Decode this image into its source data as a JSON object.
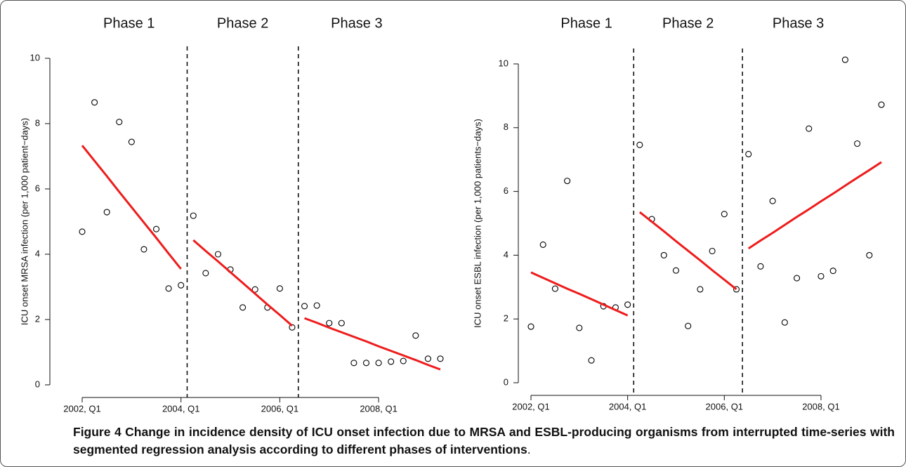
{
  "chart_data": [
    {
      "type": "scatter",
      "phases": [
        "Phase 1",
        "Phase 2",
        "Phase 3"
      ],
      "y_label": "ICU onset MRSA infection (per 1,000 patient−days)",
      "categories": [
        "2002, Q1",
        null,
        null,
        null,
        null,
        null,
        null,
        null,
        "2004, Q1",
        null,
        null,
        null,
        null,
        null,
        null,
        null,
        "2006, Q1",
        null,
        null,
        null,
        null,
        null,
        null,
        null,
        "2008, Q1",
        null,
        null,
        null,
        null,
        null
      ],
      "ylim": [
        0,
        10
      ],
      "yticks": [
        0,
        2,
        4,
        6,
        8,
        10
      ],
      "series": [
        {
          "color": "#000000",
          "marker": "open-circle",
          "values": [
            4.69,
            8.65,
            5.29,
            8.05,
            7.44,
            4.15,
            4.77,
            2.95,
            3.05,
            5.18,
            3.42,
            4.0,
            3.53,
            2.37,
            2.92,
            2.37,
            2.95,
            1.76,
            2.41,
            2.43,
            1.89,
            1.89,
            0.67,
            0.67,
            0.67,
            0.71,
            0.73,
            1.51,
            0.8,
            0.8
          ]
        },
        {
          "color": "#ee1c1c",
          "line": true,
          "values": [
            7.33,
            6.86,
            6.39,
            5.91,
            5.44,
            4.97,
            4.5,
            4.02,
            3.55,
            null,
            null,
            null,
            null,
            null,
            null,
            null,
            null,
            null,
            null,
            null,
            null,
            null,
            null,
            null,
            null,
            null,
            null,
            null,
            null,
            null
          ]
        },
        {
          "color": "#ee1c1c",
          "line": true,
          "values": [
            null,
            null,
            null,
            null,
            null,
            null,
            null,
            null,
            null,
            4.43,
            4.1,
            3.78,
            3.45,
            3.12,
            2.79,
            2.46,
            2.14,
            1.81,
            null,
            null,
            null,
            null,
            null,
            null,
            null,
            null,
            null,
            null,
            null,
            null
          ]
        },
        {
          "color": "#ee1c1c",
          "line": true,
          "values": [
            null,
            null,
            null,
            null,
            null,
            null,
            null,
            null,
            null,
            null,
            null,
            null,
            null,
            null,
            null,
            null,
            null,
            null,
            2.04,
            1.9,
            1.75,
            1.61,
            1.47,
            1.33,
            1.18,
            1.04,
            0.9,
            0.76,
            0.61,
            0.47
          ]
        }
      ]
    },
    {
      "type": "scatter",
      "phases": [
        "Phase 1",
        "Phase 2",
        "Phase 3"
      ],
      "y_label": "ICU onset ESBL infection (per 1,000 patients−days)",
      "categories": [
        "2002, Q1",
        null,
        null,
        null,
        null,
        null,
        null,
        null,
        "2004, Q1",
        null,
        null,
        null,
        null,
        null,
        null,
        null,
        "2006, Q1",
        null,
        null,
        null,
        null,
        null,
        null,
        null,
        "2008, Q1",
        null,
        null,
        null,
        null,
        null
      ],
      "ylim": [
        0,
        10
      ],
      "yticks": [
        0,
        2,
        4,
        6,
        8,
        10
      ],
      "series": [
        {
          "color": "#000000",
          "marker": "open-circle",
          "values": [
            1.76,
            4.33,
            2.95,
            6.33,
            1.72,
            0.7,
            2.4,
            2.36,
            2.45,
            7.46,
            5.13,
            4.0,
            3.52,
            1.78,
            2.93,
            4.13,
            5.29,
            2.93,
            7.17,
            3.65,
            5.7,
            1.89,
            3.28,
            7.97,
            3.34,
            3.51,
            10.13,
            7.5,
            4.0,
            8.72
          ]
        },
        {
          "color": "#ee1c1c",
          "line": true,
          "values": [
            3.46,
            3.29,
            3.12,
            2.95,
            2.79,
            2.62,
            2.45,
            2.28,
            2.11,
            null,
            null,
            null,
            null,
            null,
            null,
            null,
            null,
            null,
            null,
            null,
            null,
            null,
            null,
            null,
            null,
            null,
            null,
            null,
            null,
            null
          ]
        },
        {
          "color": "#ee1c1c",
          "line": true,
          "values": [
            null,
            null,
            null,
            null,
            null,
            null,
            null,
            null,
            null,
            5.35,
            5.05,
            4.75,
            4.44,
            4.14,
            3.84,
            3.53,
            3.23,
            2.93,
            null,
            null,
            null,
            null,
            null,
            null,
            null,
            null,
            null,
            null,
            null,
            null
          ]
        },
        {
          "color": "#ee1c1c",
          "line": true,
          "values": [
            null,
            null,
            null,
            null,
            null,
            null,
            null,
            null,
            null,
            null,
            null,
            null,
            null,
            null,
            null,
            null,
            null,
            null,
            4.21,
            4.46,
            4.7,
            4.95,
            5.2,
            5.44,
            5.69,
            5.93,
            6.18,
            6.43,
            6.67,
            6.92
          ]
        }
      ]
    }
  ],
  "figure": {
    "label": "Figure 4",
    "caption": "Change in incidence density of ICU onset infection due to MRSA and ESBL-producing organisms from interrupted time-series with segmented regression analysis according to different phases of interventions",
    "caption_end": "."
  }
}
